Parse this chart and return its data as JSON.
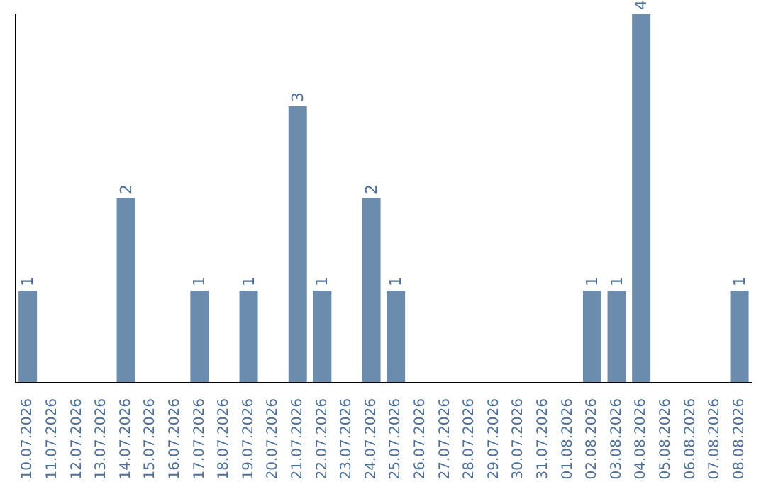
{
  "chart_data": {
    "type": "bar",
    "categories": [
      "10.07.2026",
      "11.07.2026",
      "12.07.2026",
      "13.07.2026",
      "14.07.2026",
      "15.07.2026",
      "16.07.2026",
      "17.07.2026",
      "18.07.2026",
      "19.07.2026",
      "20.07.2026",
      "21.07.2026",
      "22.07.2026",
      "23.07.2026",
      "24.07.2026",
      "25.07.2026",
      "26.07.2026",
      "27.07.2026",
      "28.07.2026",
      "29.07.2026",
      "30.07.2026",
      "31.07.2026",
      "01.08.2026",
      "02.08.2026",
      "03.08.2026",
      "04.08.2026",
      "05.08.2026",
      "06.08.2026",
      "07.08.2026",
      "08.08.2026"
    ],
    "values": [
      1,
      0,
      0,
      0,
      2,
      0,
      0,
      1,
      0,
      1,
      0,
      3,
      1,
      0,
      2,
      1,
      0,
      0,
      0,
      0,
      0,
      0,
      0,
      1,
      1,
      4,
      0,
      0,
      0,
      1
    ],
    "value_labels": [
      "1",
      null,
      null,
      null,
      "2",
      null,
      null,
      "1",
      null,
      "1",
      null,
      "3",
      "1",
      null,
      "2",
      "1",
      null,
      null,
      null,
      null,
      null,
      null,
      null,
      "1",
      "1",
      "4",
      null,
      null,
      null,
      "1"
    ],
    "color": "#6b8cac",
    "ylim": [
      0,
      4
    ],
    "tick_labels": "x"
  }
}
